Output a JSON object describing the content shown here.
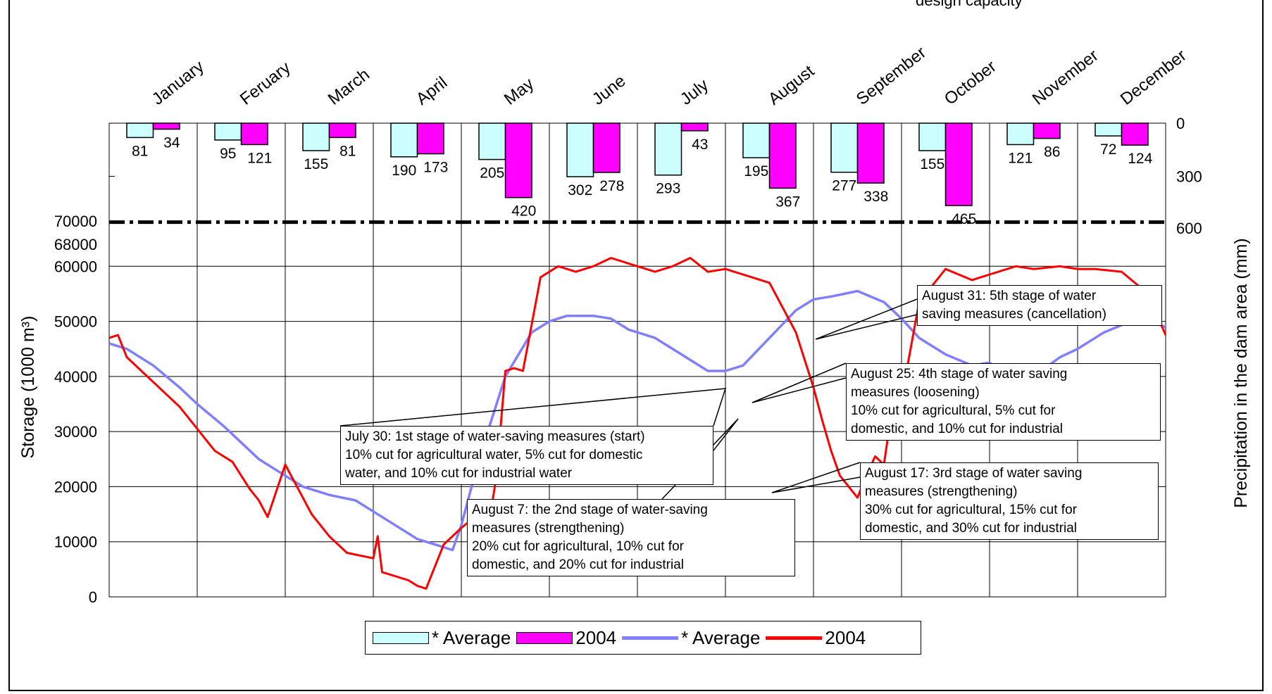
{
  "chart_data": {
    "type": "bar+line",
    "categories": [
      "January",
      "Feruary",
      "March",
      "April",
      "May",
      "June",
      "July",
      "August",
      "September",
      "October",
      "November",
      "December"
    ],
    "precipitation": {
      "ylabel": "Precipitation in the dam area (mm)",
      "ticks": [
        "0",
        "300",
        "600"
      ],
      "series": [
        {
          "name": "* Average",
          "color": "#ccffff",
          "values": [
            81,
            95,
            155,
            190,
            205,
            302,
            293,
            195,
            277,
            155,
            121,
            72
          ]
        },
        {
          "name": "2004",
          "color": "#ff00ff",
          "values": [
            34,
            121,
            81,
            173,
            420,
            278,
            43,
            367,
            338,
            465,
            86,
            124
          ]
        }
      ]
    },
    "storage": {
      "ylabel": "Storage (1000 m³)",
      "ticks": [
        "0",
        "10000",
        "20000",
        "30000",
        "40000",
        "50000",
        "60000",
        "68000",
        "70000"
      ],
      "capacity": 68000,
      "series": [
        {
          "name": "* Average",
          "color": "#7f7fff",
          "x": [
            0,
            0.2,
            0.5,
            0.8,
            1,
            1.3,
            1.5,
            1.7,
            2,
            2.2,
            2.5,
            2.8,
            3,
            3.2,
            3.5,
            3.7,
            3.8,
            3.9,
            4,
            4.2,
            4.5,
            4.8,
            5,
            5.2,
            5.5,
            5.7,
            5.8,
            5.9,
            6,
            6.2,
            6.5,
            6.8,
            7,
            7.2,
            7.5,
            7.8,
            8,
            8.2,
            8.5,
            8.8,
            9,
            9.2,
            9.5,
            9.8,
            10,
            10.2,
            10.5,
            10.8,
            11,
            11.3,
            11.6,
            11.8,
            12
          ],
          "y": [
            46000,
            45000,
            42000,
            38000,
            35000,
            31000,
            28000,
            25000,
            22000,
            20000,
            18500,
            17500,
            15500,
            13500,
            10500,
            9500,
            9000,
            8500,
            13000,
            25000,
            40000,
            48000,
            50000,
            51000,
            51000,
            50500,
            49500,
            48500,
            48000,
            47000,
            44000,
            41000,
            41000,
            42000,
            47000,
            52000,
            54000,
            54500,
            55500,
            53500,
            50500,
            47000,
            44000,
            42000,
            42500,
            40000,
            40000,
            43500,
            45000,
            48000,
            50000,
            50000,
            49000
          ]
        },
        {
          "name": "2004",
          "color": "#ff0000",
          "x": [
            0,
            0.1,
            0.2,
            0.5,
            0.8,
            1,
            1.2,
            1.4,
            1.5,
            1.6,
            1.7,
            1.8,
            2,
            2.3,
            2.5,
            2.6,
            2.7,
            3,
            3.05,
            3.1,
            3.4,
            3.5,
            3.6,
            3.8,
            4,
            4.15,
            4.25,
            4.35,
            4.4,
            4.5,
            4.6,
            4.7,
            4.9,
            5.1,
            5.3,
            5.5,
            5.7,
            6,
            6.2,
            6.4,
            6.6,
            6.8,
            7,
            7.5,
            7.8,
            8,
            8.1,
            8.2,
            8.3,
            8.5,
            8.6,
            8.7,
            8.8,
            8.9,
            9,
            9.2,
            9.5,
            9.8,
            10,
            10.3,
            10.5,
            10.8,
            11,
            11.2,
            11.5,
            11.8,
            12
          ],
          "y": [
            47000,
            47500,
            43500,
            39000,
            34500,
            30500,
            26500,
            24500,
            22000,
            19500,
            17500,
            14500,
            24000,
            15000,
            11000,
            9500,
            8000,
            7000,
            11000,
            4500,
            3000,
            2000,
            1500,
            9500,
            12500,
            14500,
            15500,
            17000,
            22000,
            41000,
            41500,
            41000,
            58000,
            60000,
            59000,
            60000,
            61500,
            60000,
            59000,
            60000,
            61500,
            59000,
            59500,
            57000,
            48000,
            38000,
            32000,
            26500,
            22000,
            18000,
            22000,
            25500,
            24000,
            35000,
            36000,
            53500,
            59500,
            57500,
            58500,
            60000,
            59500,
            60000,
            59500,
            59500,
            59000,
            55000,
            47500
          ]
        }
      ]
    },
    "xlim": [
      0,
      12
    ],
    "precip_ylim": [
      0,
      600
    ],
    "storage_ylim": [
      0,
      70000
    ]
  },
  "legend": {
    "bar_avg": "* Average",
    "bar_2004": "2004",
    "line_avg": "* Average",
    "line_2004": "2004"
  },
  "top_caption": "design capacity",
  "annotations": {
    "jul30": [
      "July 30: 1st stage of water-saving measures (start)",
      "10% cut for agricultural water, 5% cut for domestic",
      "water, and 10% cut for industrial water"
    ],
    "aug7": [
      "August 7: the 2nd stage of water-saving",
      "measures (strengthening)",
      "20% cut for agricultural, 10% cut for",
      "domestic, and 20% cut for industrial"
    ],
    "aug17": [
      "August 17: 3rd stage of water saving",
      "measures (strengthening)",
      "30% cut for agricultural, 15% cut for",
      "domestic, and 30% cut for industrial"
    ],
    "aug25": [
      "August 25: 4th stage of water saving",
      "measures (loosening)",
      "10% cut for agricultural, 5% cut for",
      "domestic, and 10% cut for industrial"
    ],
    "aug31": [
      "August 31: 5th stage of water",
      "saving measures (cancellation)"
    ]
  }
}
